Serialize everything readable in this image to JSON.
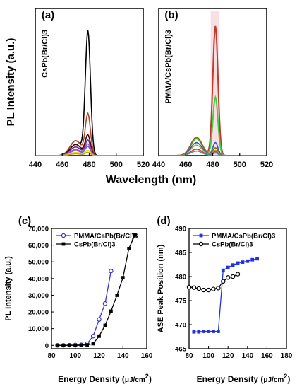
{
  "chart_data": [
    {
      "panel": "(a)",
      "type": "line",
      "sample_label": "CsPb(Br/Cl)3",
      "ylabel": "PL Intensity (a.u.)",
      "xlabel": "Wavelength (nm)",
      "xlim": [
        440,
        520
      ],
      "x_ticks": [
        440,
        460,
        480,
        500,
        520
      ],
      "y_ticks_shown": false,
      "spectrum_shape": {
        "main_peak_nm": 479,
        "shoulder_nm": 470
      },
      "series": [
        {
          "color": "#000000",
          "peak": 1.0,
          "shoulder": 0.12
        },
        {
          "color": "#b5432a",
          "peak": 0.33,
          "shoulder": 0.12
        },
        {
          "color": "#2a0a0a",
          "peak": 0.16,
          "shoulder": 0.09
        },
        {
          "color": "#7a1f7a",
          "peak": 0.12,
          "shoulder": 0.07
        },
        {
          "color": "#cc3dcc",
          "peak": 0.09,
          "shoulder": 0.05
        },
        {
          "color": "#4a7ad8",
          "peak": 0.07,
          "shoulder": 0.04
        },
        {
          "color": "#e8d800",
          "peak": 0.04,
          "shoulder": 0.025
        },
        {
          "color": "#d89a20",
          "peak": 0.025,
          "shoulder": 0.015
        }
      ]
    },
    {
      "panel": "(b)",
      "type": "line",
      "sample_label": "PMMA/CsPb(Br/Cl)3",
      "xlim": [
        440,
        520
      ],
      "x_ticks": [
        440,
        460,
        480,
        500,
        520
      ],
      "y_ticks_shown": false,
      "spectrum_shape": {
        "main_peak_nm": 482,
        "shoulder_nm": 468
      },
      "series": [
        {
          "color": "#c0392b",
          "peak": 1.0,
          "shoulder": 0.14
        },
        {
          "color": "#44cc44",
          "peak": 0.45,
          "shoulder": 0.13
        },
        {
          "color": "#2255dd",
          "peak": 0.1,
          "shoulder": 0.1
        },
        {
          "color": "#8a6a10",
          "peak": 0.06,
          "shoulder": 0.14
        },
        {
          "color": "#c1a020",
          "peak": 0.04,
          "shoulder": 0.08
        },
        {
          "color": "#e03050",
          "peak": 0.03,
          "shoulder": 0.05
        },
        {
          "color": "#30a0a0",
          "peak": 0.02,
          "shoulder": 0.035
        }
      ]
    },
    {
      "panel": "(c)",
      "type": "line",
      "xlabel_prefix": "Energy Density (",
      "xlabel_unit": "μJ/cm",
      "xlabel_sup": "2",
      "xlabel_suffix": ")",
      "ylabel": "PL Intensity (a.u.)",
      "xlim": [
        80,
        160
      ],
      "ylim": [
        -2000,
        70000
      ],
      "x_ticks": [
        80,
        100,
        120,
        140,
        160
      ],
      "y_ticks": [
        0,
        10000,
        20000,
        30000,
        40000,
        50000,
        60000,
        70000
      ],
      "y_tick_labels": [
        "0",
        "10,000",
        "20,000",
        "30,000",
        "40,000",
        "50,000",
        "60,000",
        "70,000"
      ],
      "series": [
        {
          "name": "PMMA/CsPb(Br/Cl)3",
          "color": "#3333cc",
          "marker": "open-circle",
          "x": [
            85,
            90,
            95,
            100,
            105,
            110,
            115,
            120,
            125,
            130
          ],
          "y": [
            0,
            0,
            100,
            200,
            300,
            1000,
            5500,
            15500,
            25000,
            44500
          ]
        },
        {
          "name": "CsPb(Br/Cl)3",
          "color": "#000000",
          "marker": "filled-square",
          "x": [
            85,
            90,
            95,
            100,
            105,
            110,
            115,
            120,
            125,
            130,
            135,
            140,
            145,
            150
          ],
          "y": [
            0,
            0,
            0,
            0,
            100,
            300,
            1000,
            5500,
            12000,
            20500,
            30000,
            40500,
            58000,
            66000
          ]
        }
      ]
    },
    {
      "panel": "(d)",
      "type": "line",
      "xlabel_prefix": "Energy Density (",
      "xlabel_unit": "μJ/cm",
      "xlabel_sup": "2",
      "xlabel_suffix": ")",
      "ylabel": "ASE Peak Position (nm)",
      "xlim": [
        80,
        180
      ],
      "ylim": [
        465,
        490
      ],
      "x_ticks": [
        80,
        100,
        120,
        140,
        160,
        180
      ],
      "y_ticks": [
        465,
        470,
        475,
        480,
        485,
        490
      ],
      "series": [
        {
          "name": "PMMA/CsPb(Br/Cl)3",
          "color": "#2233dd",
          "marker": "filled-square",
          "x": [
            85,
            90,
            95,
            100,
            105,
            110,
            115,
            120,
            125,
            130,
            135,
            140,
            145,
            150
          ],
          "y": [
            468.5,
            468.5,
            468.6,
            468.6,
            468.6,
            468.6,
            481.3,
            481.9,
            482.4,
            482.8,
            483.0,
            483.2,
            483.5,
            483.7
          ]
        },
        {
          "name": "CsPb(Br/Cl)3",
          "color": "#000000",
          "marker": "open-circle",
          "x": [
            80,
            85,
            90,
            95,
            100,
            105,
            110,
            115,
            120,
            125,
            130
          ],
          "y": [
            477.8,
            477.7,
            477.5,
            477.2,
            477.2,
            477.4,
            477.6,
            479.0,
            479.8,
            480.0,
            480.5
          ]
        }
      ]
    }
  ]
}
